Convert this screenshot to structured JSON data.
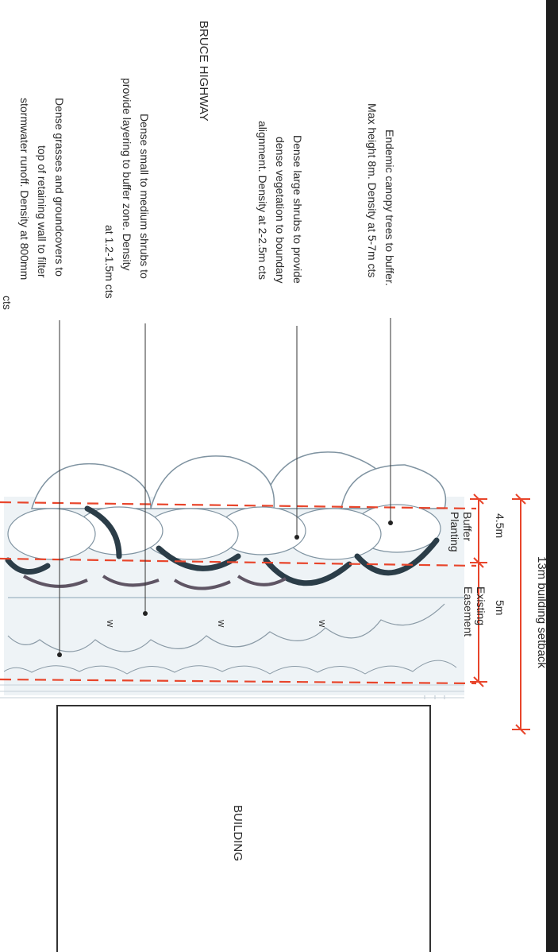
{
  "labels": {
    "road": "BRUCE HIGHWAY",
    "building": "BUILDING",
    "setback": "13m building setback",
    "buffer_width": "4.5m",
    "buffer_name_1": "Buffer",
    "buffer_name_2": "Planting",
    "easement_width": "5m",
    "easement_name_1": "Existing",
    "easement_name_2": "Easement",
    "wire_mark": "W"
  },
  "annotations": {
    "canopy": [
      "Endemic canopy trees to buffer.",
      "Max height 8m. Density at 5-7m cts"
    ],
    "large_shrubs": [
      "Dense large shrubs to provide",
      "dense vegetation to boundary",
      "alignment. Density at 2-2.5m cts"
    ],
    "small_shrubs": [
      "Dense small to medium shrubs to",
      "provide layering to buffer zone. Density",
      "at 1.2-1.5m cts"
    ],
    "grasses": [
      "Dense grasses and groundcovers to",
      "top of retaining wall to filter",
      "stormwater runoff. Density at 800mm",
      "cts"
    ]
  },
  "colors": {
    "dimension_red": "#e8452b",
    "shadow_dark": "#2b3d48",
    "sketch_line": "#8a9aa6",
    "text": "#2a2a2a"
  }
}
